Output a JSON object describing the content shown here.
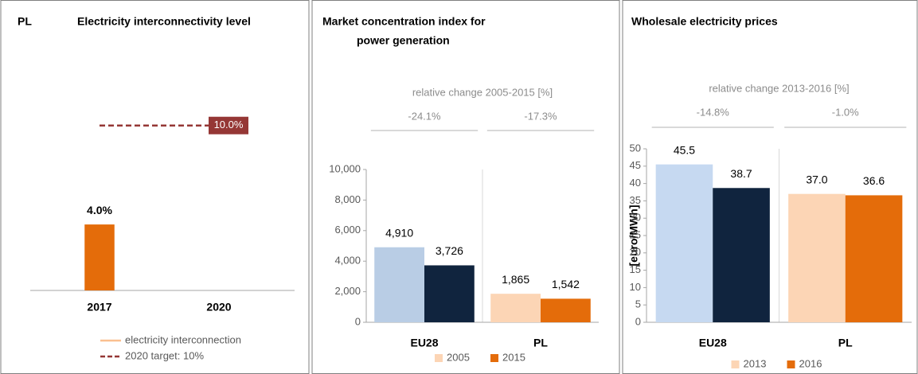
{
  "chart_data": [
    {
      "type": "bar",
      "country": "PL",
      "title": "Electricity interconnectivity level",
      "categories": [
        "2017",
        "2020"
      ],
      "ylim": [
        0,
        11
      ],
      "series": [
        {
          "name": "electricity interconnection",
          "color": "#e46c0a",
          "legend_color": "#fac090",
          "values": [
            4.0,
            null
          ],
          "value_labels": [
            "4.0%",
            null
          ]
        },
        {
          "name": "2020 target: 10%",
          "type": "line",
          "dashed": true,
          "color": "#953735",
          "values": [
            10.0,
            10.0
          ],
          "value_labels": [
            null,
            "10.0%"
          ]
        }
      ]
    },
    {
      "type": "bar",
      "title": [
        "Market concentration  index for",
        "power generation"
      ],
      "subtitle": "relative change 2005-2015 [%]",
      "changes": [
        "-24.1%",
        "-17.3%"
      ],
      "categories": [
        "EU28",
        "PL"
      ],
      "ylim": [
        0,
        10000
      ],
      "yticks": [
        0,
        {
          "value": 2000,
          "label": "2,000"
        },
        {
          "value": 4000,
          "label": "4,000"
        },
        {
          "value": 6000,
          "label": "6,000"
        },
        {
          "value": 8000,
          "label": "8,000"
        },
        {
          "value": 10000,
          "label": "10,000"
        }
      ],
      "series": [
        {
          "name": "2005",
          "color": "#fcd5b5",
          "point_colors": [
            "#b9cde5",
            "#fcd5b5"
          ],
          "values": [
            4910,
            1865
          ],
          "value_labels": [
            "4,910",
            "1,865"
          ]
        },
        {
          "name": "2015",
          "color": "#e46c0a",
          "point_colors": [
            "#10243e",
            "#e46c0a"
          ],
          "values": [
            3726,
            1542
          ],
          "value_labels": [
            "3,726",
            "1,542"
          ]
        }
      ]
    },
    {
      "type": "bar",
      "title": "Wholesale electricity prices",
      "subtitle": "relative change 2013-2016 [%]",
      "changes": [
        "-14.8%",
        "-1.0%"
      ],
      "ylabel": "[euro/MWh]",
      "categories": [
        "EU28",
        "PL"
      ],
      "ylim": [
        0,
        50
      ],
      "yticks": [
        0,
        5,
        10,
        15,
        20,
        25,
        30,
        35,
        40,
        45,
        50
      ],
      "series": [
        {
          "name": "2013",
          "color": "#fcd5b5",
          "point_colors": [
            "#c6d9f1",
            "#fcd5b5"
          ],
          "values": [
            45.5,
            37.0
          ],
          "value_labels": [
            "45.5",
            "37.0"
          ]
        },
        {
          "name": "2016",
          "color": "#e46c0a",
          "point_colors": [
            "#10243e",
            "#e46c0a"
          ],
          "values": [
            38.7,
            36.6
          ],
          "value_labels": [
            "38.7",
            "36.6"
          ]
        }
      ]
    }
  ]
}
